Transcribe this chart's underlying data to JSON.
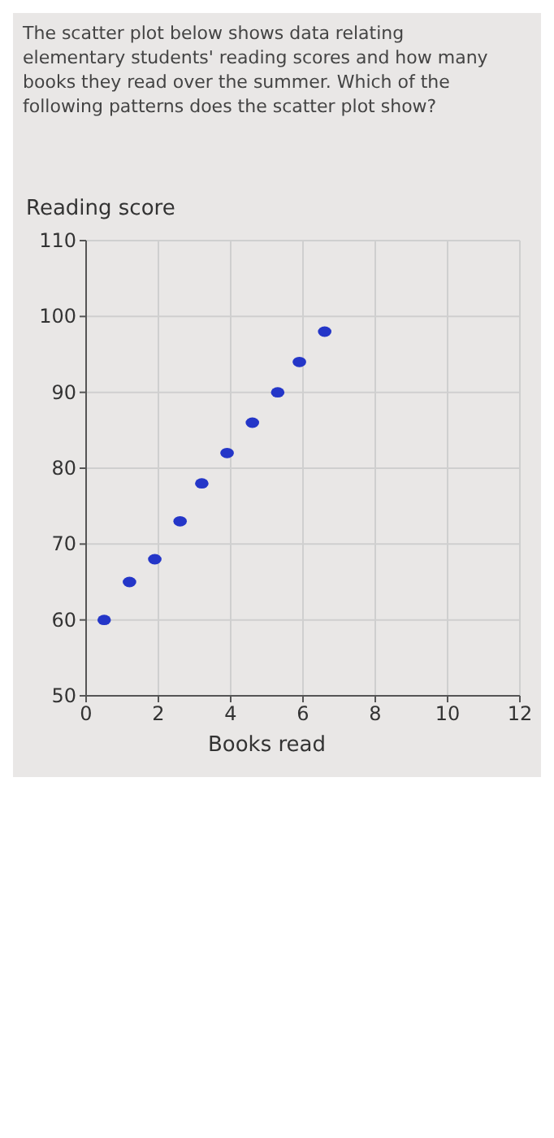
{
  "chart_data": {
    "type": "scatter",
    "title": "The scatter plot below shows data relating elementary students' reading scores and how many books they read over the summer. Which of the following patterns does the scatter plot show?",
    "xlabel": "Books read",
    "ylabel": "Reading score",
    "x": [
      0.5,
      1.2,
      1.9,
      2.6,
      3.2,
      3.9,
      4.6,
      5.3,
      5.9,
      6.6
    ],
    "series": [
      {
        "color": "#2436c8",
        "values": [
          60,
          65,
          68,
          73,
          78,
          82,
          86,
          90,
          94,
          98
        ]
      }
    ],
    "xlim": [
      0,
      12
    ],
    "xticks": [
      0,
      2,
      4,
      6,
      8,
      10,
      12
    ],
    "ylim": [
      50,
      110
    ],
    "yticks": [
      50,
      60,
      70,
      80,
      90,
      100,
      110
    ],
    "grid": true,
    "marker": "circle"
  }
}
